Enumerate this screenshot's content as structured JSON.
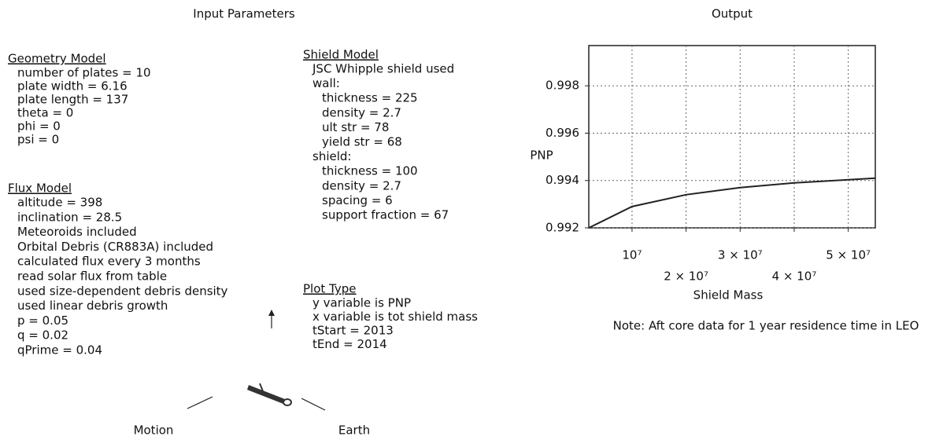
{
  "input_title": "Input Parameters",
  "geometry": {
    "heading": "Geometry Model",
    "lines": [
      "number of plates = 10",
      "plate width = 6.16",
      "plate length = 137",
      "theta = 0",
      "phi = 0",
      "psi = 0"
    ]
  },
  "flux": {
    "heading": "Flux Model",
    "lines": [
      "altitude = 398",
      "inclination = 28.5",
      "Meteoroids included",
      "Orbital Debris (CR883A) included",
      "calculated flux every 3 months",
      "read solar flux from table",
      "used size-dependent debris density",
      "used linear debris growth",
      "p = 0.05",
      "q = 0.02",
      "qPrime = 0.04"
    ]
  },
  "shield": {
    "heading": "Shield Model",
    "lines": [
      "JSC Whipple shield used",
      "wall:",
      "thickness = 225",
      "density = 2.7",
      "ult str = 78",
      "yield str = 68",
      "shield:",
      "thickness = 100",
      "density = 2.7",
      "spacing = 6",
      "support fraction = 67"
    ]
  },
  "plot_type": {
    "heading": "Plot Type",
    "lines": [
      "y variable is PNP",
      "x variable is tot shield mass",
      "tStart = 2013",
      "tEnd = 2014"
    ]
  },
  "orientation": {
    "motion": "Motion",
    "earth": "Earth"
  },
  "output_title": "Output",
  "chart_data": {
    "type": "line",
    "y_label": "PNP",
    "x_label": "Shield Mass",
    "note": "Note:  Aft core data for 1 year residence time in LEO",
    "x": [
      2000000,
      10000000,
      20000000,
      30000000,
      40000000,
      55000000
    ],
    "values": [
      0.992,
      0.9929,
      0.9934,
      0.9937,
      0.9939,
      0.9941
    ],
    "color": "#222222",
    "xlim": [
      2000000,
      55000000
    ],
    "ylim": [
      0.992,
      0.9997
    ],
    "xticks": [
      {
        "value": 10000000,
        "label": "10⁷"
      },
      {
        "value": 20000000,
        "label": "2 × 10⁷"
      },
      {
        "value": 30000000,
        "label": "3 × 10⁷"
      },
      {
        "value": 40000000,
        "label": "4 × 10⁷"
      },
      {
        "value": 50000000,
        "label": "5 × 10⁷"
      }
    ],
    "yticks": [
      0.992,
      0.994,
      0.996,
      0.998
    ],
    "grid": true
  }
}
